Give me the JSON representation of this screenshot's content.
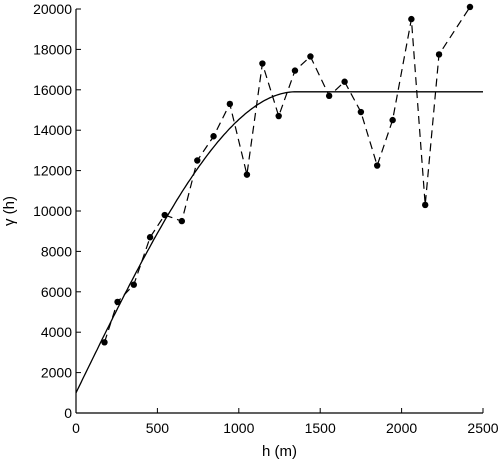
{
  "chart_data": {
    "type": "line",
    "title": "",
    "xlabel": "h (m)",
    "ylabel": "γ (h)",
    "xlim": [
      0,
      2500
    ],
    "ylim": [
      0,
      20000
    ],
    "x_ticks": [
      "0",
      "500",
      "1000",
      "1500",
      "2000",
      "2500"
    ],
    "y_ticks": [
      "0",
      "2000",
      "4000",
      "6000",
      "8000",
      "10000",
      "12000",
      "14000",
      "16000",
      "18000",
      "20000"
    ],
    "grid": false,
    "legend": "none",
    "series": [
      {
        "style": "dashed line with filled circle markers",
        "x": [
          175,
          255,
          355,
          455,
          545,
          650,
          745,
          845,
          945,
          1050,
          1145,
          1245,
          1345,
          1440,
          1555,
          1650,
          1750,
          1850,
          1945,
          2060,
          2145,
          2230,
          2420
        ],
        "y": [
          3500,
          5500,
          6350,
          8700,
          9800,
          9500,
          12500,
          13700,
          15300,
          11800,
          17300,
          14700,
          16950,
          17650,
          15700,
          16400,
          14900,
          12250,
          14500,
          19500,
          10300,
          17750,
          20100
        ]
      },
      {
        "style": "solid line (spherical model fit)",
        "model": "spherical",
        "nugget": 1000,
        "sill": 15900,
        "range": 1350,
        "x_end": 2500
      }
    ]
  }
}
